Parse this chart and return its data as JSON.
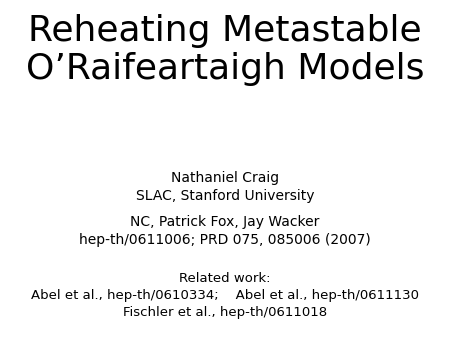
{
  "title_line1": "Reheating Metastable",
  "title_line2": "O’Raifeartaigh Models",
  "author_line1": "Nathaniel Craig",
  "author_line2": "SLAC, Stanford University",
  "ref_line1": "NC, Patrick Fox, Jay Wacker",
  "ref_line2": "hep-th/0611006; PRD 075, 085006 (2007)",
  "related_label": "Related work:",
  "related_line1": "Abel et al., hep-th/0610334;    Abel et al., hep-th/0611130",
  "related_line2": "Fischler et al., hep-th/0611018",
  "bg_color": "#ffffff",
  "text_color": "#000000",
  "title_fontsize": 26,
  "author_fontsize": 10,
  "ref_fontsize": 10,
  "related_fontsize": 9.5
}
